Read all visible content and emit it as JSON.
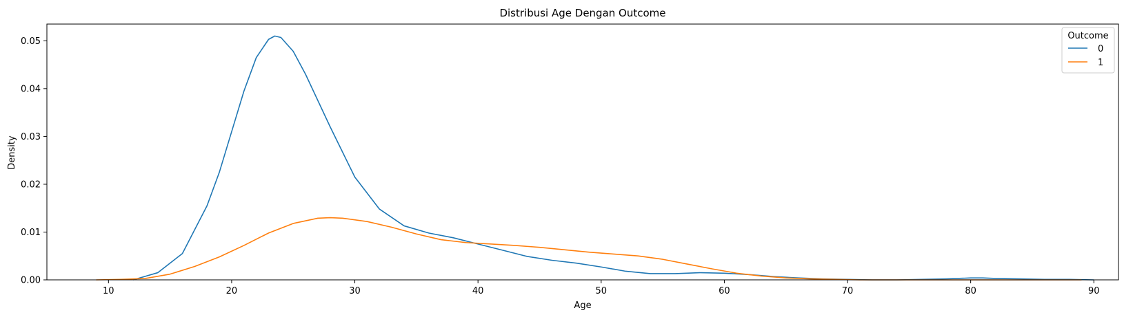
{
  "chart_data": {
    "type": "line",
    "title": "Distribusi Age Dengan Outcome",
    "xlabel": "Age",
    "ylabel": "Density",
    "xlim": [
      5,
      92
    ],
    "ylim": [
      0,
      0.0535
    ],
    "xticks": [
      10,
      20,
      30,
      40,
      50,
      60,
      70,
      80,
      90
    ],
    "yticks": [
      0,
      0.01,
      0.02,
      0.03,
      0.04,
      0.05
    ],
    "ytick_labels": [
      "0.00",
      "0.01",
      "0.02",
      "0.03",
      "0.04",
      "0.05"
    ],
    "legend": {
      "title": "Outcome",
      "position": "top-right"
    },
    "grid": false,
    "series": [
      {
        "name": "0",
        "color": "#1f77b4",
        "x": [
          12,
          14,
          16,
          18,
          19,
          20,
          21,
          22,
          23,
          23.5,
          24,
          25,
          26,
          28,
          30,
          32,
          34,
          36,
          38,
          40,
          42,
          44,
          46,
          48,
          50,
          52,
          54,
          56,
          58,
          60,
          62,
          64,
          66,
          68,
          70,
          72,
          74,
          76,
          78,
          80,
          81,
          82,
          84,
          86,
          88,
          90
        ],
        "y": [
          0.0,
          0.0015,
          0.0055,
          0.0155,
          0.0225,
          0.031,
          0.0395,
          0.0465,
          0.0503,
          0.051,
          0.0507,
          0.0478,
          0.043,
          0.032,
          0.0215,
          0.0148,
          0.0113,
          0.0098,
          0.0088,
          0.0075,
          0.0062,
          0.0049,
          0.0041,
          0.0035,
          0.0027,
          0.0018,
          0.0013,
          0.0013,
          0.0015,
          0.0014,
          0.0011,
          0.0007,
          0.0004,
          0.0002,
          0.0001,
          0.0,
          0.0,
          0.0001,
          0.0002,
          0.0004,
          0.0004,
          0.0003,
          0.0002,
          0.0001,
          0.0001,
          0.0
        ]
      },
      {
        "name": "1",
        "color": "#ff7f0e",
        "x": [
          9,
          11,
          13,
          15,
          17,
          19,
          21,
          23,
          25,
          27,
          28,
          29,
          31,
          33,
          35,
          37,
          39,
          41,
          43,
          45,
          47,
          49,
          51,
          53,
          55,
          57,
          59,
          61,
          63,
          65,
          67,
          69,
          71,
          73,
          75,
          77,
          79,
          81,
          83,
          85,
          87,
          89
        ],
        "y": [
          0.0,
          0.0001,
          0.0003,
          0.0012,
          0.0028,
          0.0048,
          0.0072,
          0.0098,
          0.0118,
          0.0129,
          0.013,
          0.0129,
          0.0122,
          0.011,
          0.0096,
          0.0084,
          0.0078,
          0.0075,
          0.0072,
          0.0068,
          0.0063,
          0.0058,
          0.0054,
          0.005,
          0.0043,
          0.0033,
          0.0023,
          0.0014,
          0.0008,
          0.0004,
          0.0002,
          0.0001,
          0.0,
          0.0,
          0.0,
          0.0,
          0.0,
          0.0,
          0.0,
          0.0,
          0.0,
          0.0
        ]
      }
    ]
  }
}
